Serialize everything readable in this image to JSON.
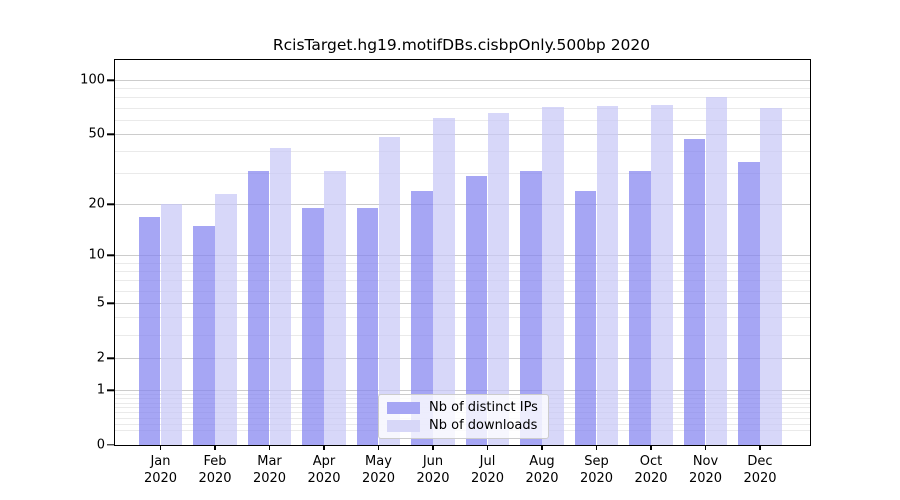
{
  "title": "RcisTarget.hg19.motifDBs.cisbpOnly.500bp 2020",
  "chart_data": {
    "type": "bar",
    "title": "RcisTarget.hg19.motifDBs.cisbpOnly.500bp 2020",
    "y_scale": "log1p",
    "ylim": [
      0,
      130
    ],
    "grid": "horizontal",
    "legend_position": "lower center",
    "categories": [
      "Jan 2020",
      "Feb 2020",
      "Mar 2020",
      "Apr 2020",
      "May 2020",
      "Jun 2020",
      "Jul 2020",
      "Aug 2020",
      "Sep 2020",
      "Oct 2020",
      "Nov 2020",
      "Dec 2020"
    ],
    "series": [
      {
        "name": "Nb of distinct IPs",
        "color": "#a6a6f4",
        "fill": "rgba(132,132,240,0.72)",
        "values": [
          17,
          15,
          31,
          19,
          19,
          24,
          29,
          31,
          24,
          31,
          47,
          35
        ]
      },
      {
        "name": "Nb of downloads",
        "color": "#d7d7f8",
        "fill": "rgba(200,200,246,0.72)",
        "values": [
          20,
          23,
          42,
          31,
          48,
          62,
          66,
          71,
          72,
          73,
          81,
          70
        ]
      }
    ]
  },
  "axes": {
    "y_ticks_major": [
      100,
      50,
      20,
      10,
      5,
      2,
      1,
      0
    ],
    "y_ticks_minor": [
      0.2,
      0.3,
      0.4,
      0.5,
      0.6,
      0.7,
      0.8,
      0.9,
      3,
      4,
      6,
      7,
      8,
      9,
      30,
      40,
      60,
      70,
      80,
      90
    ],
    "months": [
      "Jan",
      "Feb",
      "Mar",
      "Apr",
      "May",
      "Jun",
      "Jul",
      "Aug",
      "Sep",
      "Oct",
      "Nov",
      "Dec"
    ],
    "year": "2020"
  },
  "legend": {
    "items": [
      {
        "label": "Nb of distinct IPs",
        "color": "#a6a6f4"
      },
      {
        "label": "Nb of downloads",
        "color": "#d7d7f8"
      }
    ]
  },
  "colors": {
    "background": "#ffffff",
    "plot_border": "#000000",
    "grid_major": "#cccccc",
    "grid_minor": "#eaeaea",
    "text": "#000000"
  }
}
